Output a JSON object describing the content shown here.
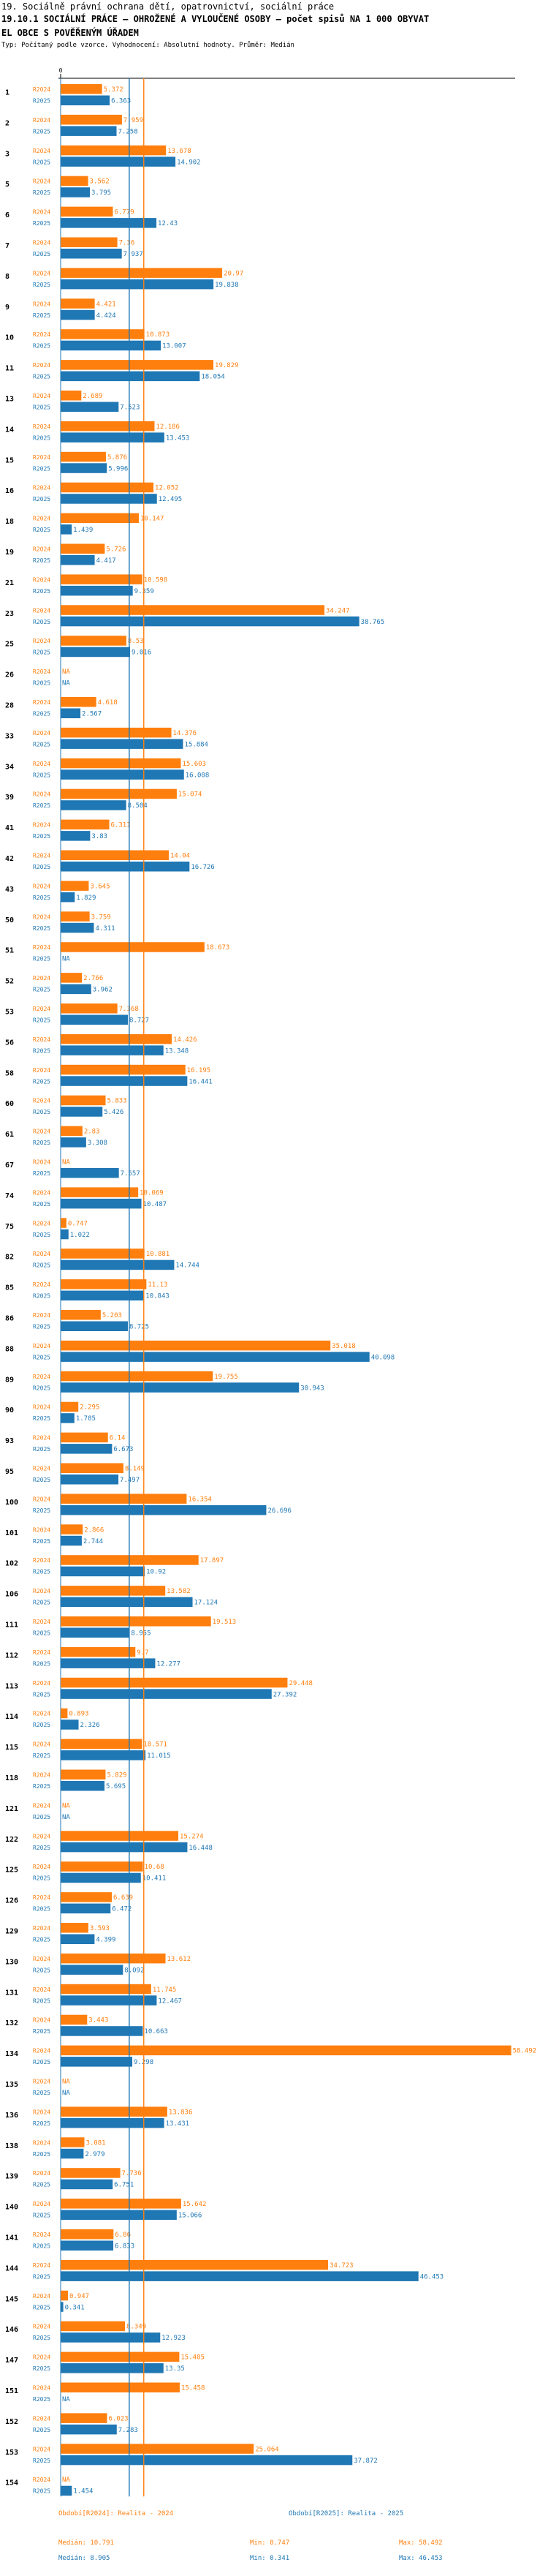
{
  "header": {
    "line1": "19. Sociálně právní ochrana dětí, opatrovnictví, sociální práce",
    "line2": "19.10.1 SOCIÁLNÍ PRÁCE – OHROŽENÉ A VYLOUČENÉ OSOBY – počet spisů NA 1 000 OBYVAT",
    "line3": "EL OBCE S POVĚŘENÝM ÚŘADEM",
    "line4": "Typ: Počítaný podle vzorce. Vyhodnocení: Absolutní hodnoty. Průměr: Medián"
  },
  "colors": {
    "orange": "#ff7f0e",
    "blue": "#1f77b4"
  },
  "chart_data": {
    "type": "bar",
    "orientation": "horizontal",
    "xlim": [
      0,
      59
    ],
    "series_names": [
      "R2024",
      "R2025"
    ],
    "series_colors": [
      "#ff7f0e",
      "#1f77b4"
    ],
    "categories": [
      {
        "id": "1",
        "r2024": "5.372",
        "r2025": "6.363",
        "v2024": 5.372,
        "v2025": 6.363
      },
      {
        "id": "2",
        "r2024": "7.959",
        "r2025": "7.258",
        "v2024": 7.959,
        "v2025": 7.258
      },
      {
        "id": "3",
        "r2024": "13.678",
        "r2025": "14.902",
        "v2024": 13.678,
        "v2025": 14.902
      },
      {
        "id": "5",
        "r2024": "3.562",
        "r2025": "3.795",
        "v2024": 3.562,
        "v2025": 3.795
      },
      {
        "id": "6",
        "r2024": "6.779",
        "r2025": "12.43",
        "v2024": 6.779,
        "v2025": 12.43
      },
      {
        "id": "7",
        "r2024": "7.36",
        "r2025": "7.937",
        "v2024": 7.36,
        "v2025": 7.937
      },
      {
        "id": "8",
        "r2024": "20.97",
        "r2025": "19.838",
        "v2024": 20.97,
        "v2025": 19.838
      },
      {
        "id": "9",
        "r2024": "4.421",
        "r2025": "4.424",
        "v2024": 4.421,
        "v2025": 4.424
      },
      {
        "id": "10",
        "r2024": "10.873",
        "r2025": "13.007",
        "v2024": 10.873,
        "v2025": 13.007
      },
      {
        "id": "11",
        "r2024": "19.829",
        "r2025": "18.054",
        "v2024": 19.829,
        "v2025": 18.054
      },
      {
        "id": "13",
        "r2024": "2.689",
        "r2025": "7.523",
        "v2024": 2.689,
        "v2025": 7.523
      },
      {
        "id": "14",
        "r2024": "12.186",
        "r2025": "13.453",
        "v2024": 12.186,
        "v2025": 13.453
      },
      {
        "id": "15",
        "r2024": "5.876",
        "r2025": "5.996",
        "v2024": 5.876,
        "v2025": 5.996
      },
      {
        "id": "16",
        "r2024": "12.052",
        "r2025": "12.495",
        "v2024": 12.052,
        "v2025": 12.495
      },
      {
        "id": "18",
        "r2024": "10.147",
        "r2025": "1.439",
        "v2024": 10.147,
        "v2025": 1.439
      },
      {
        "id": "19",
        "r2024": "5.726",
        "r2025": "4.417",
        "v2024": 5.726,
        "v2025": 4.417
      },
      {
        "id": "21",
        "r2024": "10.598",
        "r2025": "9.359",
        "v2024": 10.598,
        "v2025": 9.359
      },
      {
        "id": "23",
        "r2024": "34.247",
        "r2025": "38.765",
        "v2024": 34.247,
        "v2025": 38.765
      },
      {
        "id": "25",
        "r2024": "8.53",
        "r2025": "9.016",
        "v2024": 8.53,
        "v2025": 9.016
      },
      {
        "id": "26",
        "r2024": "NA",
        "r2025": "NA",
        "v2024": null,
        "v2025": null
      },
      {
        "id": "28",
        "r2024": "4.618",
        "r2025": "2.567",
        "v2024": 4.618,
        "v2025": 2.567
      },
      {
        "id": "33",
        "r2024": "14.376",
        "r2025": "15.884",
        "v2024": 14.376,
        "v2025": 15.884
      },
      {
        "id": "34",
        "r2024": "15.603",
        "r2025": "16.008",
        "v2024": 15.603,
        "v2025": 16.008
      },
      {
        "id": "39",
        "r2024": "15.074",
        "r2025": "8.504",
        "v2024": 15.074,
        "v2025": 8.504
      },
      {
        "id": "41",
        "r2024": "6.311",
        "r2025": "3.83",
        "v2024": 6.311,
        "v2025": 3.83
      },
      {
        "id": "42",
        "r2024": "14.04",
        "r2025": "16.726",
        "v2024": 14.04,
        "v2025": 16.726
      },
      {
        "id": "43",
        "r2024": "3.645",
        "r2025": "1.829",
        "v2024": 3.645,
        "v2025": 1.829
      },
      {
        "id": "50",
        "r2024": "3.759",
        "r2025": "4.311",
        "v2024": 3.759,
        "v2025": 4.311
      },
      {
        "id": "51",
        "r2024": "18.673",
        "r2025": "NA",
        "v2024": 18.673,
        "v2025": null
      },
      {
        "id": "52",
        "r2024": "2.766",
        "r2025": "3.962",
        "v2024": 2.766,
        "v2025": 3.962
      },
      {
        "id": "53",
        "r2024": "7.368",
        "r2025": "8.727",
        "v2024": 7.368,
        "v2025": 8.727
      },
      {
        "id": "56",
        "r2024": "14.426",
        "r2025": "13.348",
        "v2024": 14.426,
        "v2025": 13.348
      },
      {
        "id": "58",
        "r2024": "16.195",
        "r2025": "16.441",
        "v2024": 16.195,
        "v2025": 16.441
      },
      {
        "id": "60",
        "r2024": "5.833",
        "r2025": "5.426",
        "v2024": 5.833,
        "v2025": 5.426
      },
      {
        "id": "61",
        "r2024": "2.83",
        "r2025": "3.308",
        "v2024": 2.83,
        "v2025": 3.308
      },
      {
        "id": "67",
        "r2024": "NA",
        "r2025": "7.557",
        "v2024": null,
        "v2025": 7.557
      },
      {
        "id": "74",
        "r2024": "10.069",
        "r2025": "10.487",
        "v2024": 10.069,
        "v2025": 10.487
      },
      {
        "id": "75",
        "r2024": "0.747",
        "r2025": "1.022",
        "v2024": 0.747,
        "v2025": 1.022
      },
      {
        "id": "82",
        "r2024": "10.881",
        "r2025": "14.744",
        "v2024": 10.881,
        "v2025": 14.744
      },
      {
        "id": "85",
        "r2024": "11.13",
        "r2025": "10.843",
        "v2024": 11.13,
        "v2025": 10.843
      },
      {
        "id": "86",
        "r2024": "5.203",
        "r2025": "8.725",
        "v2024": 5.203,
        "v2025": 8.725
      },
      {
        "id": "88",
        "r2024": "35.018",
        "r2025": "40.098",
        "v2024": 35.018,
        "v2025": 40.098
      },
      {
        "id": "89",
        "r2024": "19.755",
        "r2025": "30.943",
        "v2024": 19.755,
        "v2025": 30.943
      },
      {
        "id": "90",
        "r2024": "2.295",
        "r2025": "1.785",
        "v2024": 2.295,
        "v2025": 1.785
      },
      {
        "id": "93",
        "r2024": "6.14",
        "r2025": "6.673",
        "v2024": 6.14,
        "v2025": 6.673
      },
      {
        "id": "95",
        "r2024": "8.149",
        "r2025": "7.497",
        "v2024": 8.149,
        "v2025": 7.497
      },
      {
        "id": "100",
        "r2024": "16.354",
        "r2025": "26.696",
        "v2024": 16.354,
        "v2025": 26.696
      },
      {
        "id": "101",
        "r2024": "2.866",
        "r2025": "2.744",
        "v2024": 2.866,
        "v2025": 2.744
      },
      {
        "id": "102",
        "r2024": "17.897",
        "r2025": "10.92",
        "v2024": 17.897,
        "v2025": 10.92
      },
      {
        "id": "106",
        "r2024": "13.582",
        "r2025": "17.124",
        "v2024": 13.582,
        "v2025": 17.124
      },
      {
        "id": "111",
        "r2024": "19.513",
        "r2025": "8.955",
        "v2024": 19.513,
        "v2025": 8.955
      },
      {
        "id": "112",
        "r2024": "9.7",
        "r2025": "12.277",
        "v2024": 9.7,
        "v2025": 12.277
      },
      {
        "id": "113",
        "r2024": "29.448",
        "r2025": "27.392",
        "v2024": 29.448,
        "v2025": 27.392
      },
      {
        "id": "114",
        "r2024": "0.893",
        "r2025": "2.326",
        "v2024": 0.893,
        "v2025": 2.326
      },
      {
        "id": "115",
        "r2024": "10.571",
        "r2025": "11.015",
        "v2024": 10.571,
        "v2025": 11.015
      },
      {
        "id": "118",
        "r2024": "5.829",
        "r2025": "5.695",
        "v2024": 5.829,
        "v2025": 5.695
      },
      {
        "id": "121",
        "r2024": "NA",
        "r2025": "NA",
        "v2024": null,
        "v2025": null
      },
      {
        "id": "122",
        "r2024": "15.274",
        "r2025": "16.448",
        "v2024": 15.274,
        "v2025": 16.448
      },
      {
        "id": "125",
        "r2024": "10.68",
        "r2025": "10.411",
        "v2024": 10.68,
        "v2025": 10.411
      },
      {
        "id": "126",
        "r2024": "6.639",
        "r2025": "6.472",
        "v2024": 6.639,
        "v2025": 6.472
      },
      {
        "id": "129",
        "r2024": "3.593",
        "r2025": "4.399",
        "v2024": 3.593,
        "v2025": 4.399
      },
      {
        "id": "130",
        "r2024": "13.612",
        "r2025": "8.092",
        "v2024": 13.612,
        "v2025": 8.092
      },
      {
        "id": "131",
        "r2024": "11.745",
        "r2025": "12.467",
        "v2024": 11.745,
        "v2025": 12.467
      },
      {
        "id": "132",
        "r2024": "3.443",
        "r2025": "10.663",
        "v2024": 3.443,
        "v2025": 10.663
      },
      {
        "id": "134",
        "r2024": "58.492",
        "r2025": "9.298",
        "v2024": 58.492,
        "v2025": 9.298
      },
      {
        "id": "135",
        "r2024": "NA",
        "r2025": "NA",
        "v2024": null,
        "v2025": null
      },
      {
        "id": "136",
        "r2024": "13.836",
        "r2025": "13.431",
        "v2024": 13.836,
        "v2025": 13.431
      },
      {
        "id": "138",
        "r2024": "3.081",
        "r2025": "2.979",
        "v2024": 3.081,
        "v2025": 2.979
      },
      {
        "id": "139",
        "r2024": "7.736",
        "r2025": "6.751",
        "v2024": 7.736,
        "v2025": 6.751
      },
      {
        "id": "140",
        "r2024": "15.642",
        "r2025": "15.066",
        "v2024": 15.642,
        "v2025": 15.066
      },
      {
        "id": "141",
        "r2024": "6.86",
        "r2025": "6.833",
        "v2024": 6.86,
        "v2025": 6.833
      },
      {
        "id": "144",
        "r2024": "34.723",
        "r2025": "46.453",
        "v2024": 34.723,
        "v2025": 46.453
      },
      {
        "id": "145",
        "r2024": "0.947",
        "r2025": "0.341",
        "v2024": 0.947,
        "v2025": 0.341
      },
      {
        "id": "146",
        "r2024": "8.349",
        "r2025": "12.923",
        "v2024": 8.349,
        "v2025": 12.923
      },
      {
        "id": "147",
        "r2024": "15.405",
        "r2025": "13.35",
        "v2024": 15.405,
        "v2025": 13.35
      },
      {
        "id": "151",
        "r2024": "15.458",
        "r2025": "NA",
        "v2024": 15.458,
        "v2025": null
      },
      {
        "id": "152",
        "r2024": "6.023",
        "r2025": "7.283",
        "v2024": 6.023,
        "v2025": 7.283
      },
      {
        "id": "153",
        "r2024": "25.064",
        "r2025": "37.872",
        "v2024": 25.064,
        "v2025": 37.872
      },
      {
        "id": "154",
        "r2024": "NA",
        "r2025": "1.454",
        "v2024": null,
        "v2025": 1.454
      }
    ],
    "reference_lines": [
      {
        "name": "median-2024",
        "value": 10.791,
        "color": "#ff7f0e"
      },
      {
        "name": "median-2025",
        "value": 8.905,
        "color": "#1f77b4"
      }
    ]
  },
  "legend": {
    "orange_title": "Období[R2024]: Realita - 2024",
    "blue_title": "Období[R2025]: Realita - 2025",
    "orange_median": "Medián: 10.791",
    "orange_min": "Min: 0.747",
    "orange_max": "Max: 58.492",
    "blue_median": "Medián: 8.905",
    "blue_min": "Min: 0.341",
    "blue_max": "Max: 46.453"
  }
}
